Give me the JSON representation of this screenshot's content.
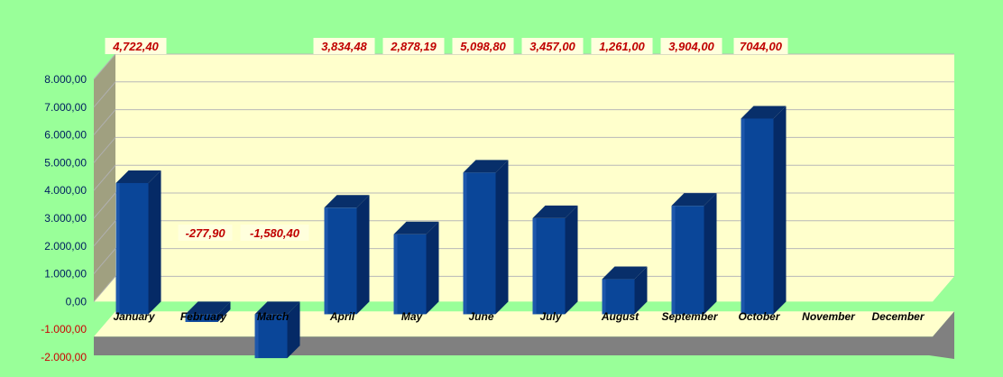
{
  "chart_data": {
    "type": "bar",
    "categories": [
      "January",
      "February",
      "March",
      "April",
      "May",
      "June",
      "July",
      "August",
      "September",
      "October",
      "November",
      "December"
    ],
    "values": [
      4722.4,
      -277.9,
      -1580.4,
      3834.48,
      2878.19,
      5098.8,
      3457.0,
      1261.0,
      3904.0,
      7044.0,
      null,
      null
    ],
    "data_labels": [
      "4,722,40",
      "-277,90",
      "-1,580,40",
      "3,834,48",
      "2,878,19",
      "5,098,80",
      "3,457,00",
      "1,261,00",
      "3,904,00",
      "7044,00",
      "",
      ""
    ],
    "y_ticks": [
      8000,
      7000,
      6000,
      5000,
      4000,
      3000,
      2000,
      1000,
      0,
      -1000,
      -2000
    ],
    "y_tick_labels": [
      "8.000,00",
      "7.000,00",
      "6.000,00",
      "5.000,00",
      "4.000,00",
      "3.000,00",
      "2.000,00",
      "1.000,00",
      "0,00",
      "-1.000,00",
      "-2.000,00"
    ],
    "ylim": [
      -2000,
      8000
    ],
    "title": "",
    "xlabel": "",
    "ylabel": "",
    "grid": true,
    "legend": "none",
    "style": "3d-bar",
    "colors": {
      "background": "#99ff99",
      "plot_wall": "#ffffcc",
      "side_wall": "#a0a080",
      "floor": "#808080",
      "bar_front": "#0a4699",
      "bar_side": "#052a66",
      "bar_top": "#082f6a",
      "label_color": "#c00000",
      "label_bg": "#ffffdd"
    }
  }
}
